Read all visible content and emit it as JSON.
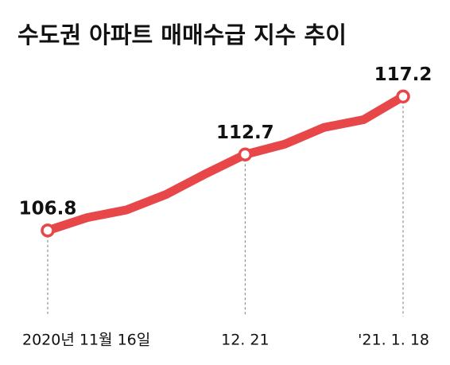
{
  "chart_data": {
    "type": "line",
    "title": "수도권 아파트 매매수급 지수 추이",
    "categories": [
      "2020년 11월 16일",
      null,
      null,
      null,
      null,
      "12. 21",
      null,
      null,
      null,
      "'21. 1. 18"
    ],
    "series": [
      {
        "color": "#e8474a",
        "values": [
          106.8,
          107.8,
          108.4,
          109.6,
          111.2,
          112.7,
          113.5,
          114.8,
          115.4,
          117.2
        ],
        "value_labels": [
          "106.8",
          null,
          null,
          null,
          null,
          "112.7",
          null,
          null,
          null,
          "117.2"
        ]
      }
    ],
    "ylim": [
      100,
      120
    ]
  }
}
